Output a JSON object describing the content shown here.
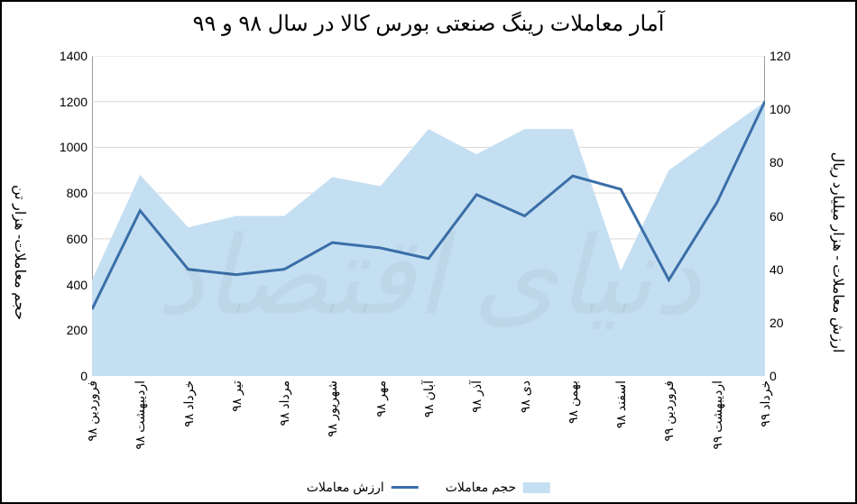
{
  "chart": {
    "type": "combo-area-line",
    "title": "آمار معاملات رینگ صنعتی بورس کالا در سال ۹۸ و ۹۹",
    "title_fontsize": 24,
    "background_color": "#ffffff",
    "border_color": "#000000",
    "categories": [
      "فروردین ۹۸",
      "اردیبهشت ۹۸",
      "خرداد ۹۸",
      "تیر ۹۸",
      "مرداد ۹۸",
      "شهریور ۹۸",
      "مهر ۹۸",
      "آبان ۹۸",
      "آذر ۹۸",
      "دی ۹۸",
      "بهمن ۹۸",
      "اسفند ۹۸",
      "فروردین ۹۹",
      "اردیبهشت ۹۹",
      "خرداد ۹۹"
    ],
    "series_area": {
      "name": "حجم معاملات",
      "values": [
        420,
        880,
        650,
        700,
        700,
        870,
        830,
        1080,
        970,
        1080,
        1080,
        460,
        900,
        1050,
        1200
      ],
      "fill_color": "#c5dff2",
      "fill_opacity": 1.0,
      "axis": "left"
    },
    "series_line": {
      "name": "ارزش معاملات",
      "values": [
        25,
        62,
        40,
        38,
        40,
        50,
        48,
        44,
        68,
        60,
        75,
        70,
        36,
        65,
        103
      ],
      "line_color": "#3a6fa8",
      "line_width": 3,
      "axis": "right"
    },
    "y_left": {
      "label": "حجم معاملات- هزار تن",
      "min": 0,
      "max": 1400,
      "step": 200,
      "label_fontsize": 16,
      "tick_fontsize": 14
    },
    "y_right": {
      "label": "ارزش معاملات - هزار میلیارد ریال",
      "min": 0,
      "max": 120,
      "step": 20,
      "label_fontsize": 16,
      "tick_fontsize": 14
    },
    "x_label_fontsize": 14,
    "legend": {
      "items": [
        {
          "label": "حجم معاملات",
          "swatch_type": "area",
          "color": "#c5dff2"
        },
        {
          "label": "ارزش معاملات",
          "swatch_type": "line",
          "color": "#3a6fa8"
        }
      ],
      "fontsize": 14
    },
    "grid_color": "#d9d9d9"
  }
}
